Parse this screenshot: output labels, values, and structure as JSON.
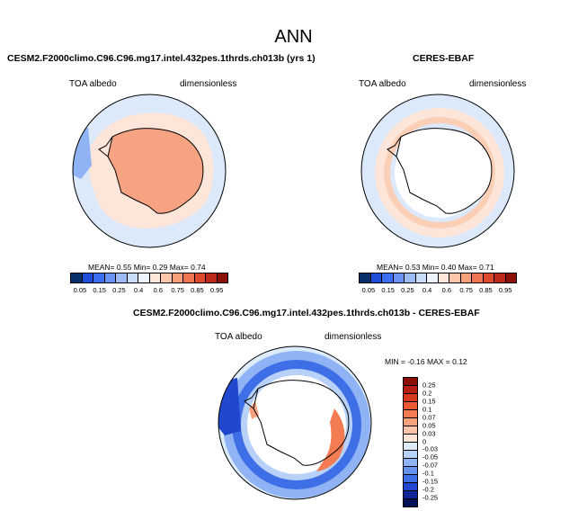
{
  "title": "ANN",
  "panel1": {
    "title": "CESM2.F2000climo.C96.C96.mg17.intel.432pes.1thrds.ch013b (yrs 1)",
    "var_label": "TOA albedo",
    "units_label": "dimensionless",
    "stats": "MEAN=   0.55  Min=   0.29  Max=   0.74"
  },
  "panel2": {
    "title": "CERES-EBAF",
    "var_label": "TOA albedo",
    "units_label": "dimensionless",
    "stats": "MEAN=   0.53  Min=   0.40  Max=   0.71"
  },
  "panel3": {
    "title": "CESM2.F2000climo.C96.C96.mg17.intel.432pes.1thrds.ch013b - CERES-EBAF",
    "var_label": "TOA albedo",
    "units_label": "dimensionless",
    "stats": "MIN =  -0.16  MAX =   0.12"
  },
  "colorbar_abs": {
    "labels": [
      "0.05",
      "0.15",
      "0.25",
      "0.4",
      "0.6",
      "0.75",
      "0.85",
      "0.95"
    ],
    "colors": [
      "#08306b",
      "#1f4fd8",
      "#3b6ef0",
      "#6a93f4",
      "#9dbbf6",
      "#c9dcfa",
      "#eef4fd",
      "#fde7db",
      "#fbc6aa",
      "#f6a07c",
      "#ee7551",
      "#dd4a2d",
      "#bb2a1a",
      "#8b1108"
    ]
  },
  "colorbar_diff": {
    "labels": [
      "0.25",
      "0.2",
      "0.15",
      "0.1",
      "0.07",
      "0.05",
      "0.03",
      "0",
      "-0.03",
      "-0.05",
      "-0.07",
      "-0.1",
      "-0.15",
      "-0.2",
      "-0.25"
    ],
    "colors": [
      "#8b0e06",
      "#b51e14",
      "#d63a1e",
      "#ea5a32",
      "#f47c52",
      "#f8a17d",
      "#fbc4a8",
      "#fde4d6",
      "#ddebfb",
      "#b8d1f8",
      "#8fb3f4",
      "#6692ef",
      "#3f6fe6",
      "#2147cf",
      "#10259a",
      "#061257"
    ]
  }
}
